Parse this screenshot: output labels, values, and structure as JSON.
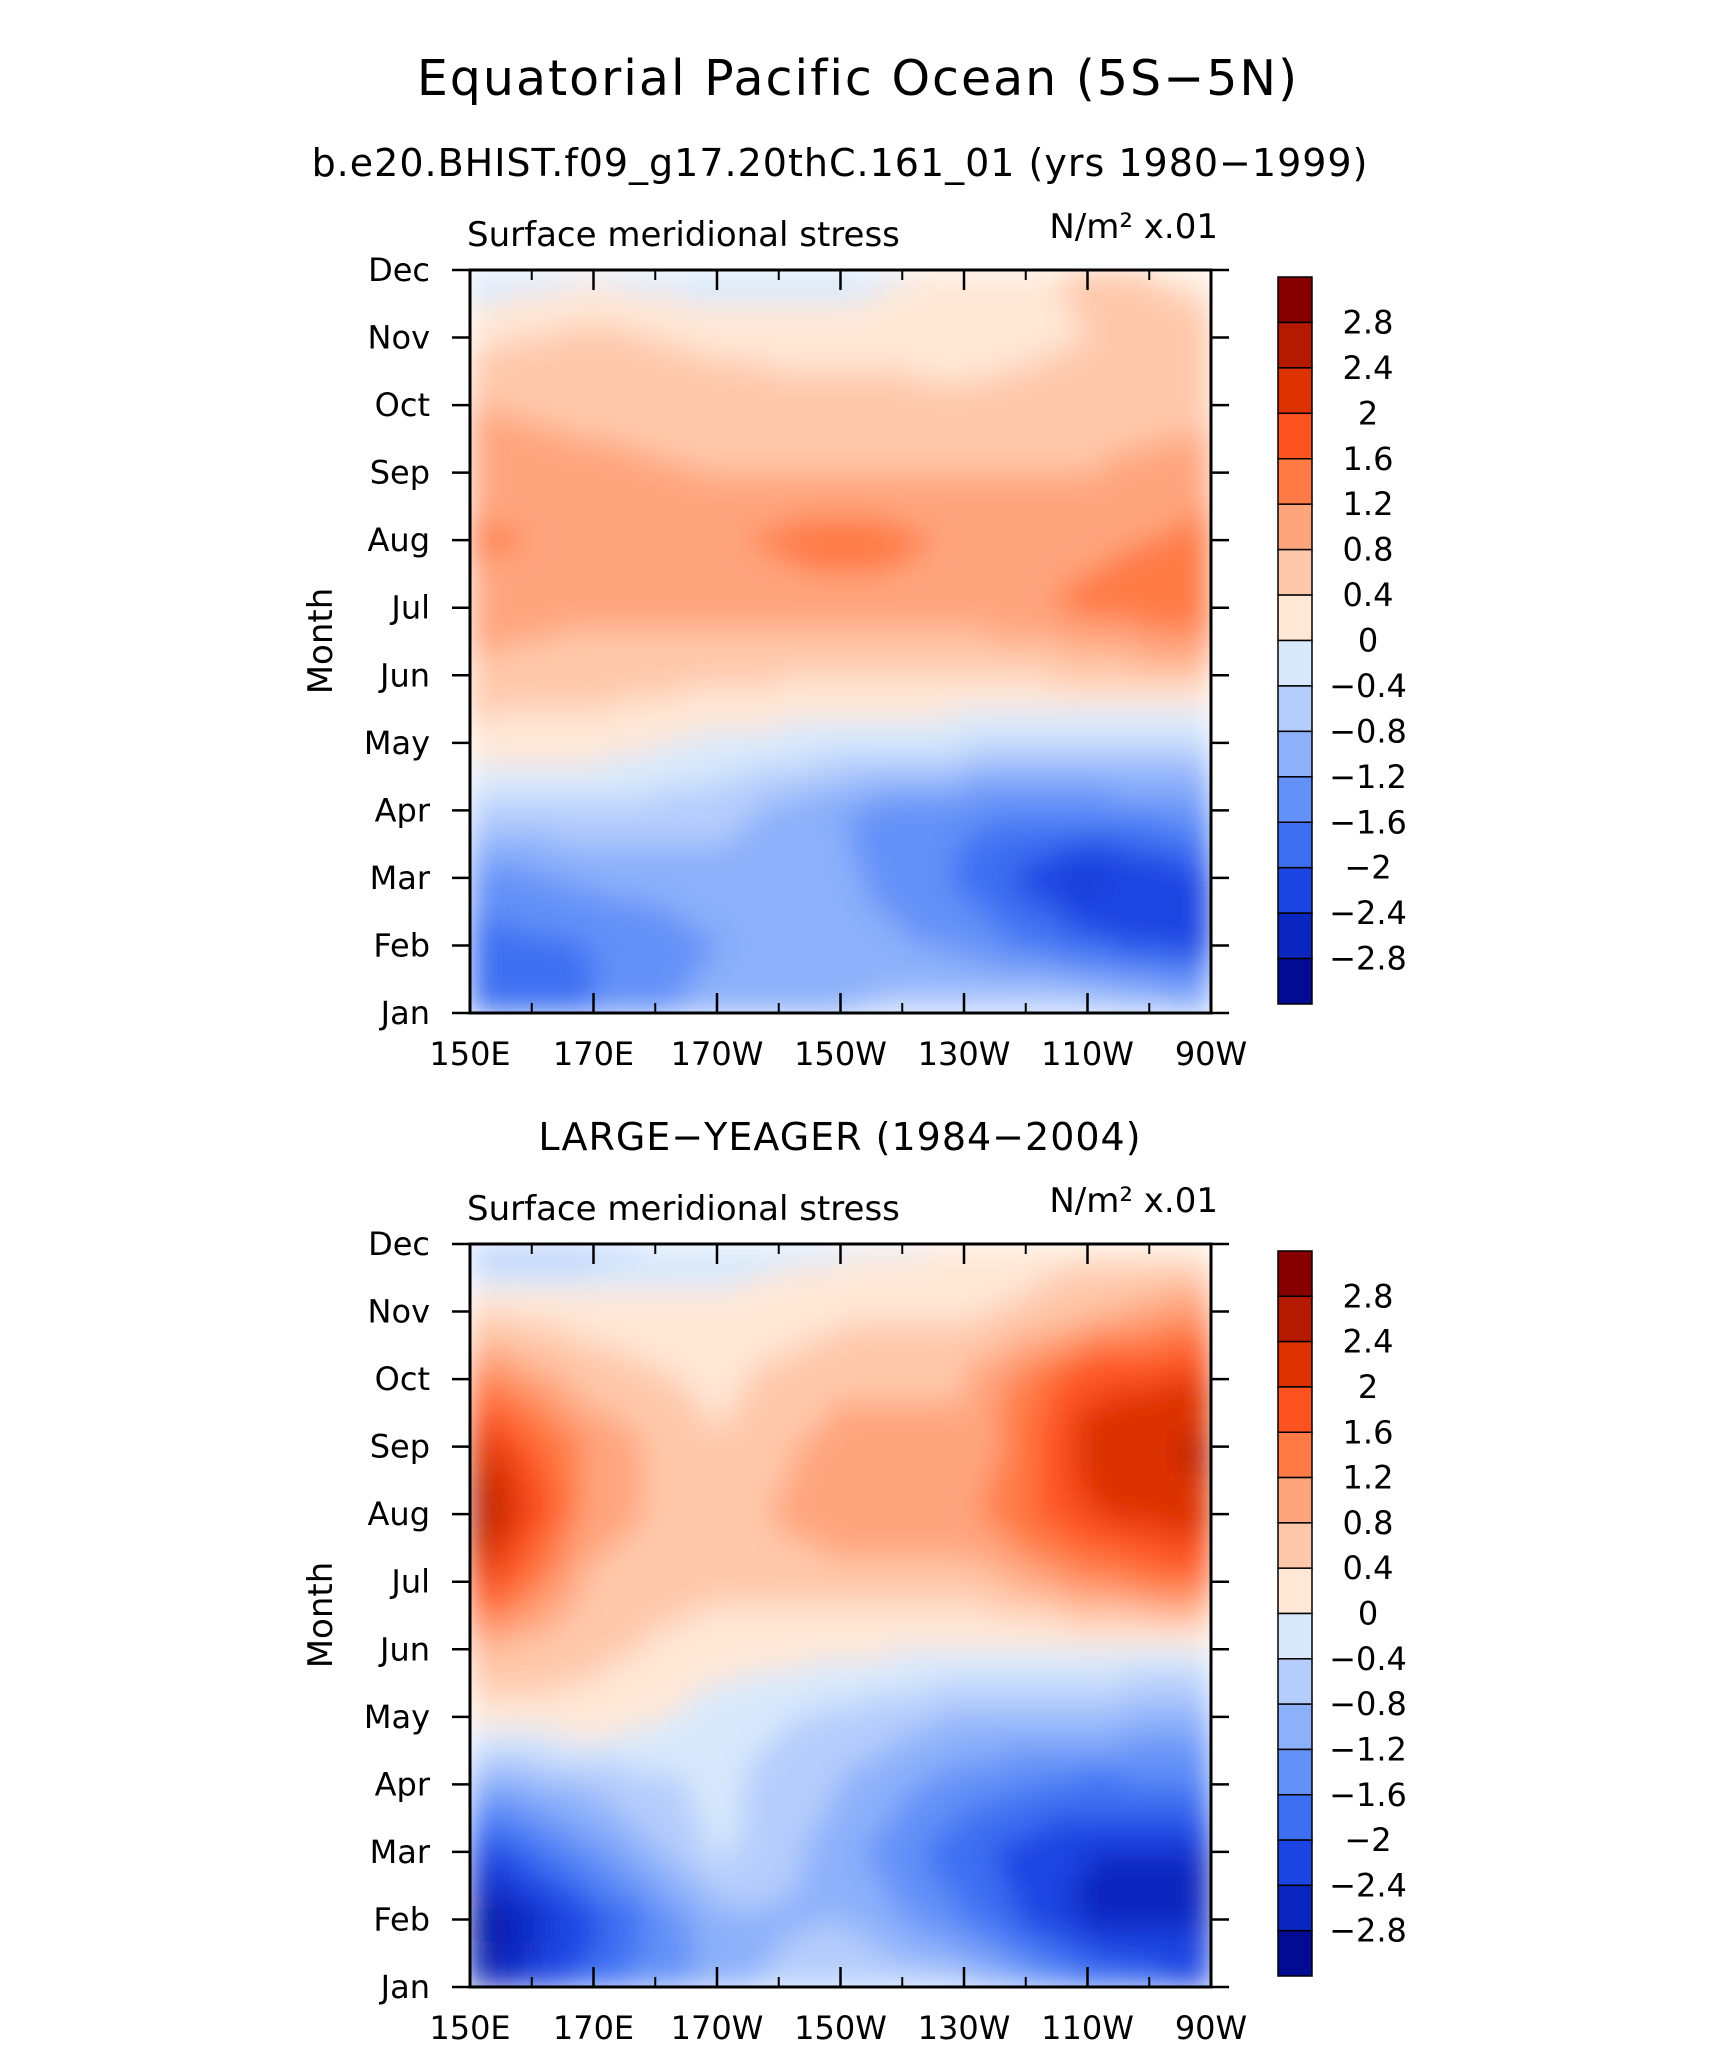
{
  "figure": {
    "title": "Equatorial Pacific Ocean (5S−5N)",
    "subtitle": "b.e20.BHIST.f09_g17.20thC.161_01 (yrs 1980−1999)"
  },
  "levels": {
    "labels": [
      "2.8",
      "2.4",
      "2",
      "1.6",
      "1.2",
      "0.8",
      "0.4",
      "0",
      "−0.4",
      "−0.8",
      "−1.2",
      "−1.6",
      "−2",
      "−2.4",
      "−2.8"
    ],
    "colors": [
      "#870000",
      "#b31a00",
      "#dd3300",
      "#fd5320",
      "#ff7a45",
      "#ffa57e",
      "#ffc8aa",
      "#ffe7d6",
      "#d8e9fc",
      "#b5cdfc",
      "#8cb0fa",
      "#6391f8",
      "#3d6ff2",
      "#1b44e2",
      "#0b25bf",
      "#020c92"
    ]
  },
  "chart_data": [
    {
      "type": "heatmap",
      "panel_title": "",
      "left_label": "Surface meridional stress",
      "units": "N/m² x.01",
      "ylabel": "Month",
      "xlabel": "",
      "x": [
        "150E",
        "170E",
        "170W",
        "150W",
        "130W",
        "110W",
        "90W"
      ],
      "y": [
        "Jan",
        "Feb",
        "Mar",
        "Apr",
        "May",
        "Jun",
        "Jul",
        "Aug",
        "Sep",
        "Oct",
        "Nov",
        "Dec"
      ],
      "values": [
        [
          -1.7,
          -1.6,
          -1.0,
          -0.8,
          -0.5,
          -0.4,
          -0.8
        ],
        [
          -1.8,
          -1.6,
          -1.2,
          -1.0,
          -1.3,
          -1.9,
          -2.2
        ],
        [
          -1.4,
          -1.1,
          -1.0,
          -1.1,
          -1.7,
          -2.5,
          -2.1
        ],
        [
          -0.6,
          -0.5,
          -0.6,
          -1.2,
          -1.5,
          -1.5,
          -1.3
        ],
        [
          0.2,
          0.2,
          -0.1,
          -0.2,
          -0.3,
          -0.4,
          -0.5
        ],
        [
          0.7,
          0.6,
          0.5,
          0.4,
          0.4,
          0.5,
          0.7
        ],
        [
          1.0,
          0.9,
          0.9,
          1.0,
          1.0,
          1.3,
          1.6
        ],
        [
          1.3,
          1.1,
          1.1,
          1.5,
          1.1,
          1.1,
          1.3
        ],
        [
          1.0,
          0.9,
          0.8,
          0.8,
          0.8,
          0.8,
          1.1
        ],
        [
          0.8,
          0.7,
          0.6,
          0.6,
          0.5,
          0.6,
          0.6
        ],
        [
          0.3,
          0.5,
          0.3,
          0.2,
          0.2,
          0.4,
          0.5
        ],
        [
          -0.3,
          -0.1,
          -0.3,
          -0.2,
          0.1,
          0.5,
          0.3
        ]
      ]
    },
    {
      "type": "heatmap",
      "panel_title": "LARGE−YEAGER (1984−2004)",
      "left_label": "Surface meridional stress",
      "units": "N/m² x.01",
      "ylabel": "Month",
      "xlabel": "",
      "x": [
        "150E",
        "170E",
        "170W",
        "150W",
        "130W",
        "110W",
        "90W"
      ],
      "y": [
        "Jan",
        "Feb",
        "Mar",
        "Apr",
        "May",
        "Jun",
        "Jul",
        "Aug",
        "Sep",
        "Oct",
        "Nov",
        "Dec"
      ],
      "values": [
        [
          -2.8,
          -1.8,
          -1.0,
          -0.4,
          -0.6,
          -1.6,
          -2.1
        ],
        [
          -3.0,
          -2.1,
          -0.9,
          -0.8,
          -1.6,
          -2.5,
          -2.5
        ],
        [
          -2.3,
          -1.3,
          -0.3,
          -1.0,
          -1.9,
          -2.4,
          -2.4
        ],
        [
          -1.1,
          -0.7,
          -0.3,
          -0.8,
          -1.4,
          -1.7,
          -1.6
        ],
        [
          0.2,
          0.3,
          -0.2,
          -0.5,
          -0.8,
          -0.8,
          -1.0
        ],
        [
          0.8,
          0.5,
          0.2,
          0.1,
          0.0,
          -0.1,
          0.0
        ],
        [
          2.1,
          0.7,
          0.5,
          0.6,
          0.6,
          1.2,
          1.6
        ],
        [
          2.9,
          1.0,
          0.5,
          1.2,
          1.1,
          2.0,
          2.3
        ],
        [
          2.3,
          1.1,
          0.4,
          1.0,
          0.8,
          2.2,
          2.5
        ],
        [
          1.4,
          0.6,
          0.3,
          0.7,
          0.8,
          1.9,
          2.0
        ],
        [
          0.4,
          0.2,
          0.1,
          0.3,
          0.3,
          0.7,
          1.2
        ],
        [
          -0.9,
          -0.6,
          -0.2,
          -0.1,
          0.0,
          0.3,
          0.1
        ]
      ]
    }
  ]
}
